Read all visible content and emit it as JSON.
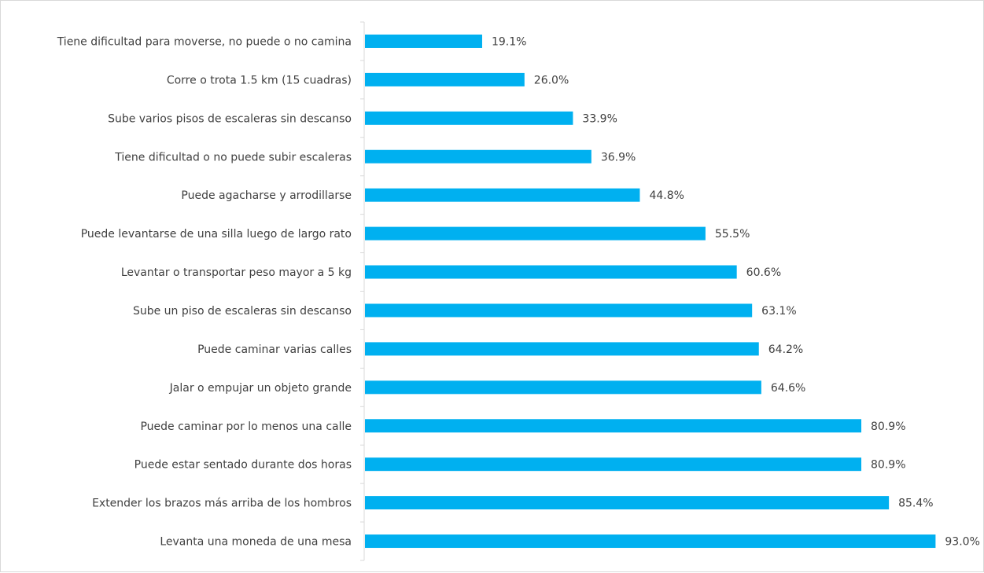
{
  "chart_data": {
    "type": "bar",
    "orientation": "horizontal",
    "categories": [
      "Tiene dificultad para moverse, no puede o no camina",
      "Corre o trota 1.5 km (15 cuadras)",
      "Sube varios pisos de escaleras sin descanso",
      "Tiene dificultad o no puede subir escaleras",
      "Puede agacharse y arrodillarse",
      "Puede levantarse de una silla luego de largo rato",
      "Levantar o transportar peso mayor a 5 kg",
      "Sube un piso de escaleras sin descanso",
      "Puede caminar varias calles",
      "Jalar o empujar un objeto grande",
      "Puede caminar por lo menos una calle",
      "Puede estar sentado durante dos horas",
      "Extender los brazos más arriba de los hombros",
      "Levanta una moneda de una mesa"
    ],
    "values": [
      19.1,
      26.0,
      33.9,
      36.9,
      44.8,
      55.5,
      60.6,
      63.1,
      64.2,
      64.6,
      80.9,
      80.9,
      85.4,
      93.0
    ],
    "value_labels": [
      "19.1%",
      "26.0%",
      "33.9%",
      "36.9%",
      "44.8%",
      "55.5%",
      "60.6%",
      "63.1%",
      "64.2%",
      "64.6%",
      "80.9%",
      "80.9%",
      "85.4%",
      "93.0%"
    ],
    "xlim": [
      0,
      100
    ],
    "grid": false,
    "legend": "none",
    "bar_color": "#00b0f0",
    "title": "",
    "xlabel": "",
    "ylabel": ""
  }
}
